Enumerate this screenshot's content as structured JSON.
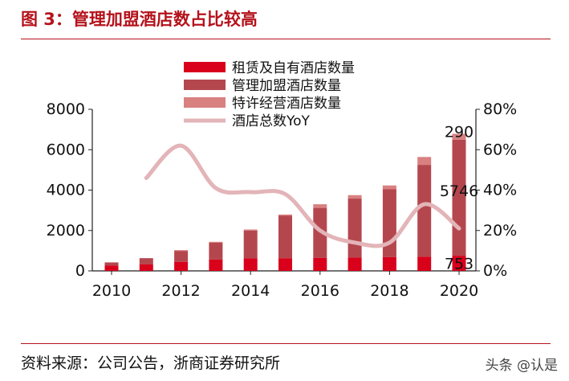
{
  "header": {
    "title": "图 3：管理加盟酒店数占比较高"
  },
  "footer": {
    "source": "资料来源：公司公告，浙商证券研究所",
    "watermark": "头条 @认是"
  },
  "colors": {
    "leased": "#d9001b",
    "franchised": "#b4474e",
    "licensed": "#d98080",
    "yoy_line": "#e3b4b8",
    "title": "#b5121b"
  },
  "chart_data": {
    "type": "bar",
    "stacked": true,
    "x": [
      2010,
      2011,
      2012,
      2013,
      2014,
      2015,
      2016,
      2017,
      2018,
      2019,
      2020
    ],
    "xticks": [
      "2010",
      "2012",
      "2014",
      "2016",
      "2018",
      "2020"
    ],
    "ylim": [
      0,
      8000
    ],
    "yticks": [
      "0",
      "2000",
      "4000",
      "6000",
      "8000"
    ],
    "y2lim": [
      0,
      0.8
    ],
    "y2ticks": [
      "0%",
      "20%",
      "40%",
      "60%",
      "80%"
    ],
    "series": [
      {
        "name": "租赁及自有酒店数量",
        "values": [
          260,
          320,
          450,
          560,
          620,
          630,
          640,
          660,
          680,
          700,
          753
        ]
      },
      {
        "name": "管理加盟酒店数量",
        "values": [
          160,
          310,
          540,
          840,
          1380,
          2110,
          2480,
          2920,
          3360,
          4550,
          5746
        ]
      },
      {
        "name": "特许经营酒店数量",
        "values": [
          0,
          0,
          40,
          40,
          50,
          50,
          180,
          170,
          190,
          390,
          290
        ]
      }
    ],
    "line_series": {
      "name": "酒店总数YoY",
      "axis": "right",
      "x_values": [
        2011,
        2012,
        2013,
        2014,
        2015,
        2016,
        2017,
        2018,
        2019,
        2020
      ],
      "values": [
        0.46,
        0.62,
        0.41,
        0.39,
        0.38,
        0.2,
        0.14,
        0.14,
        0.33,
        0.21
      ]
    },
    "annotations": [
      "290",
      "5746",
      "753"
    ],
    "legend_position": "top-center"
  }
}
